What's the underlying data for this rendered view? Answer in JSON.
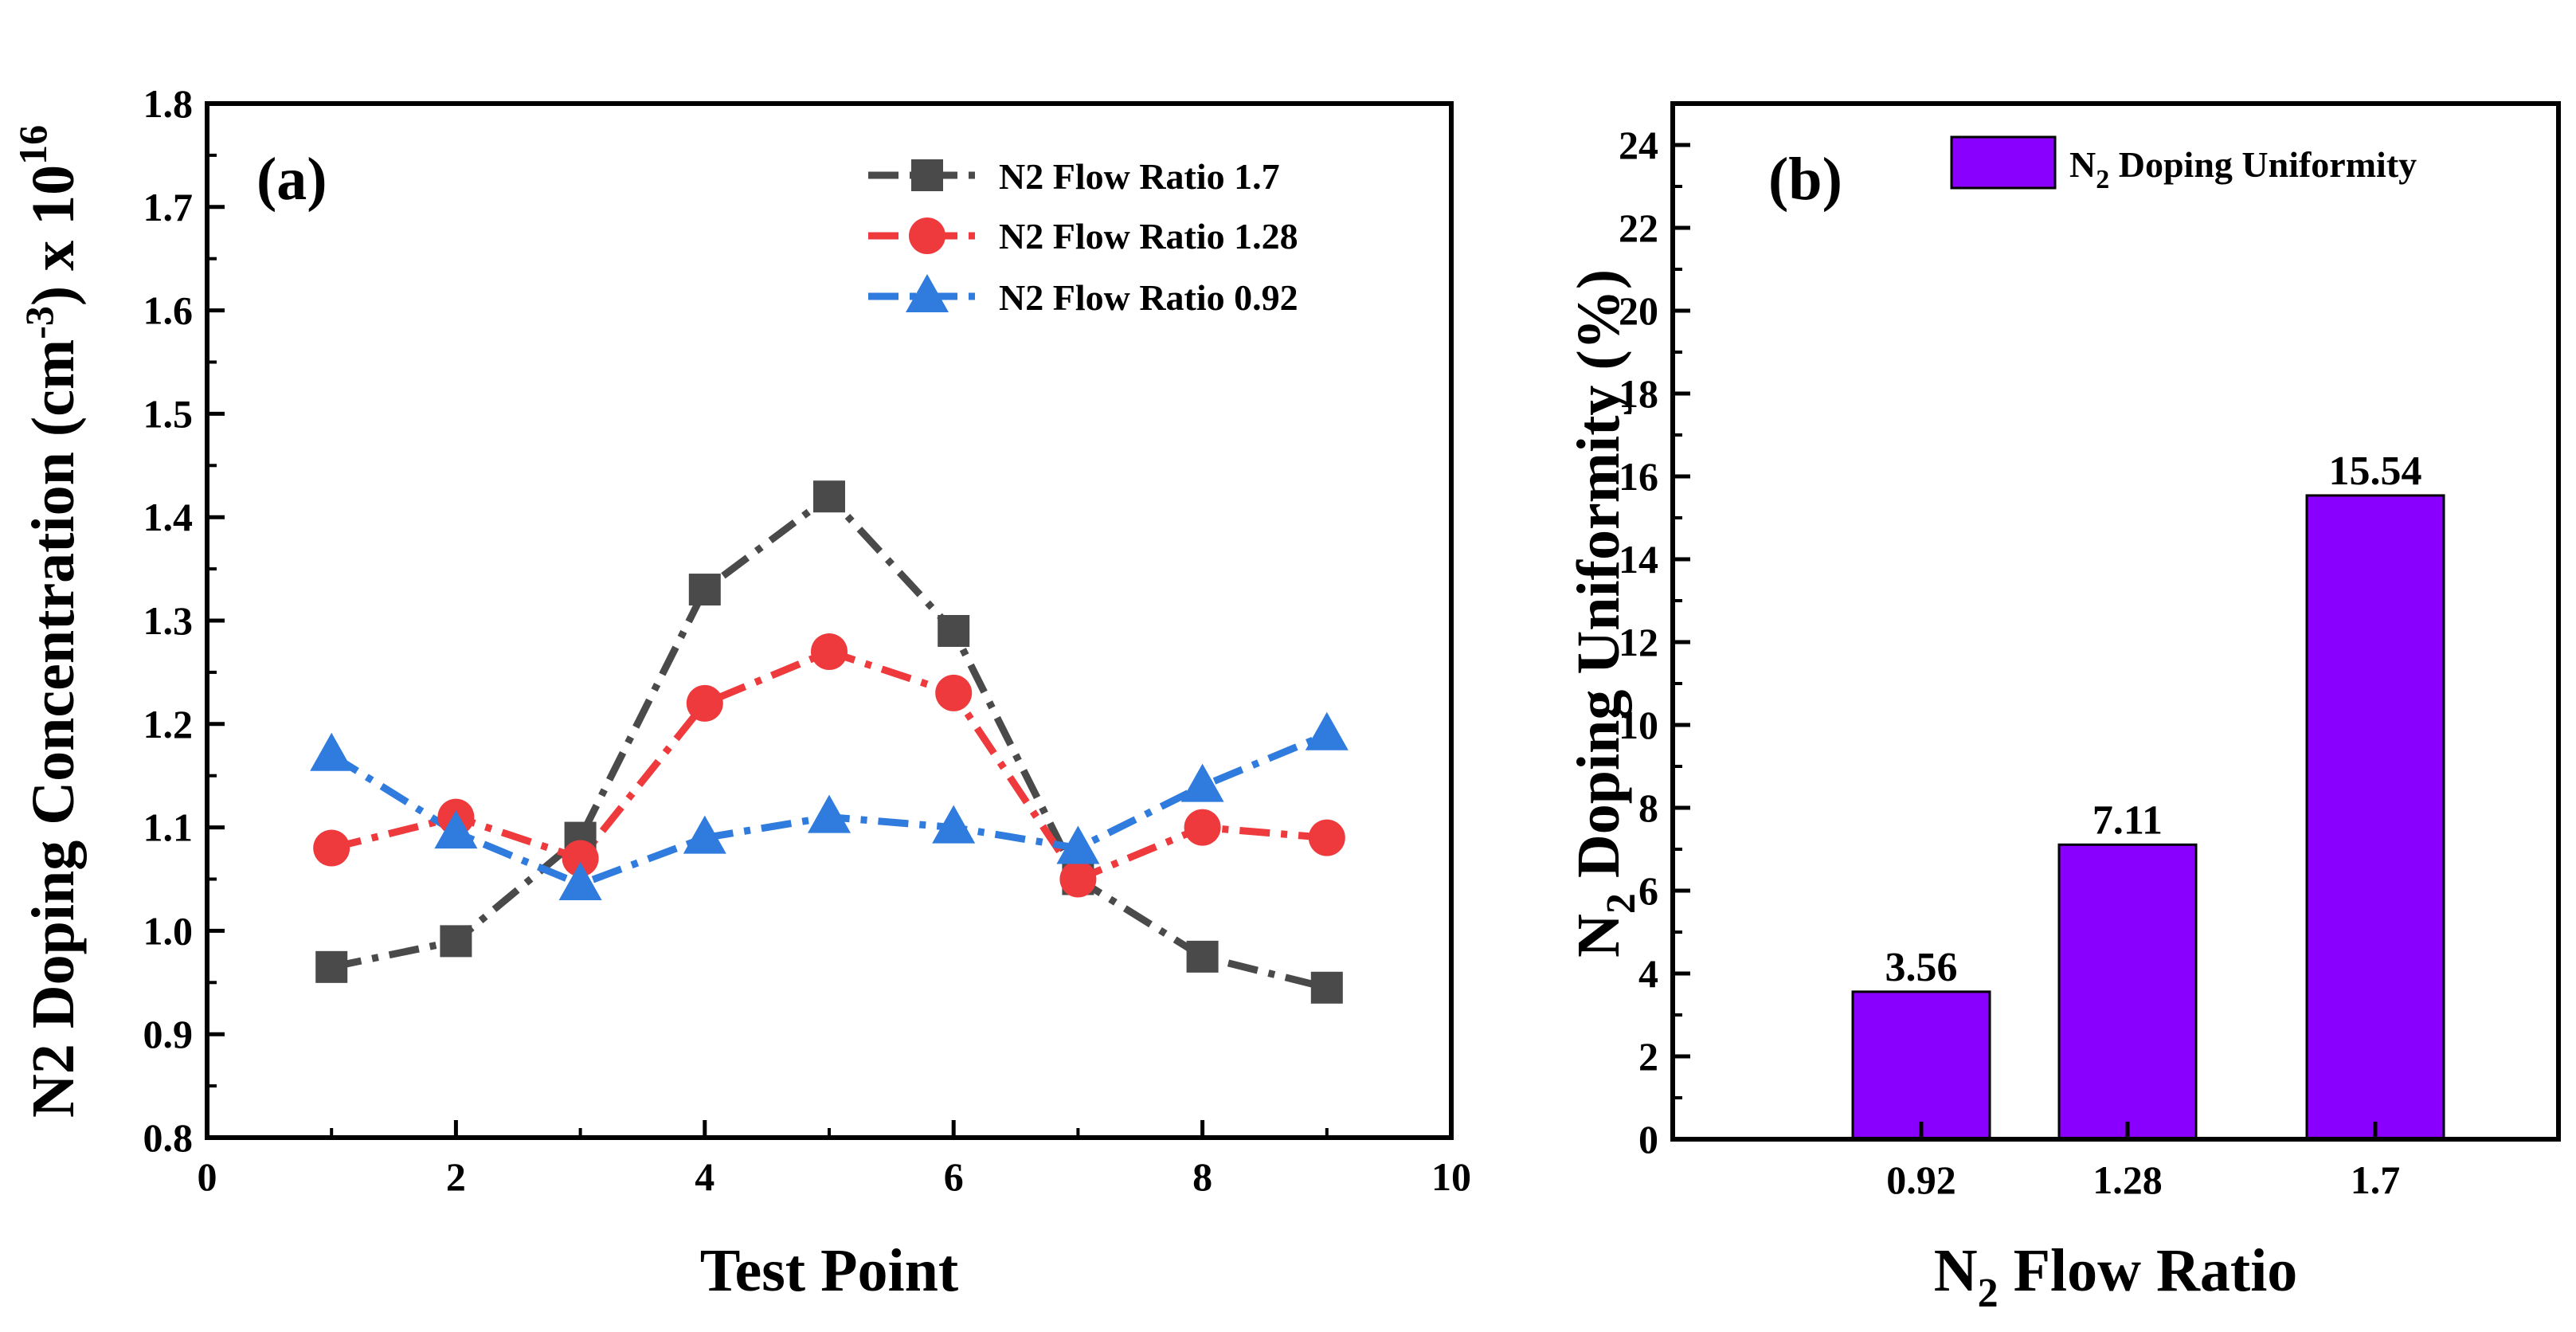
{
  "colors": {
    "series_black": "#4a4a4a",
    "series_red": "#ee3a3c",
    "series_blue": "#2f7bde",
    "bar_fill": "#8a00ff"
  },
  "chart_data": [
    {
      "panel": "(a)",
      "type": "line",
      "title": "",
      "xlabel": "Test Point",
      "ylabel_main": "N2 Doping Concentration (cm",
      "ylabel_exp": "-3",
      "ylabel_suffix": ") x 10",
      "ylabel_power": "16",
      "xlim": [
        0,
        10
      ],
      "ylim": [
        0.8,
        1.8
      ],
      "xticks": [
        "0",
        "2",
        "4",
        "6",
        "8",
        "10"
      ],
      "yticks": [
        "0.8",
        "0.9",
        "1.0",
        "1.1",
        "1.2",
        "1.3",
        "1.4",
        "1.5",
        "1.6",
        "1.7",
        "1.8"
      ],
      "legend_position": "top-right",
      "series": [
        {
          "name": "N2 Flow Ratio 1.7",
          "marker": "square",
          "color": "#4a4a4a",
          "x": [
            1,
            2,
            3,
            4,
            5,
            6,
            7,
            8,
            9
          ],
          "y": [
            0.965,
            0.99,
            1.09,
            1.33,
            1.42,
            1.29,
            1.05,
            0.975,
            0.945
          ]
        },
        {
          "name": "N2 Flow Ratio 1.28",
          "marker": "circle",
          "color": "#ee3a3c",
          "x": [
            1,
            2,
            3,
            4,
            5,
            6,
            7,
            8,
            9
          ],
          "y": [
            1.08,
            1.11,
            1.07,
            1.22,
            1.27,
            1.23,
            1.05,
            1.1,
            1.09
          ]
        },
        {
          "name": "N2 Flow Ratio 0.92",
          "marker": "triangle",
          "color": "#2f7bde",
          "x": [
            1,
            2,
            3,
            4,
            5,
            6,
            7,
            8,
            9
          ],
          "y": [
            1.17,
            1.095,
            1.045,
            1.09,
            1.11,
            1.1,
            1.08,
            1.14,
            1.19
          ]
        }
      ]
    },
    {
      "panel": "(b)",
      "type": "bar",
      "title": "",
      "xlabel_main": "N",
      "xlabel_sub": "2",
      "xlabel_suffix": " Flow Ratio",
      "ylabel_main": "N",
      "ylabel_sub": "2",
      "ylabel_suffix": " Doping Uniformity (%)",
      "ylim": [
        0,
        25
      ],
      "yticks": [
        "0",
        "2",
        "4",
        "6",
        "8",
        "10",
        "12",
        "14",
        "16",
        "18",
        "20",
        "22",
        "24"
      ],
      "categories": [
        "0.92",
        "1.28",
        "1.7"
      ],
      "values": [
        3.56,
        7.11,
        15.54
      ],
      "value_labels": [
        "3.56",
        "7.11",
        "15.54"
      ],
      "legend_position": "top-right",
      "legend_main": "N",
      "legend_sub": "2",
      "legend_suffix": " Doping Uniformity"
    }
  ]
}
